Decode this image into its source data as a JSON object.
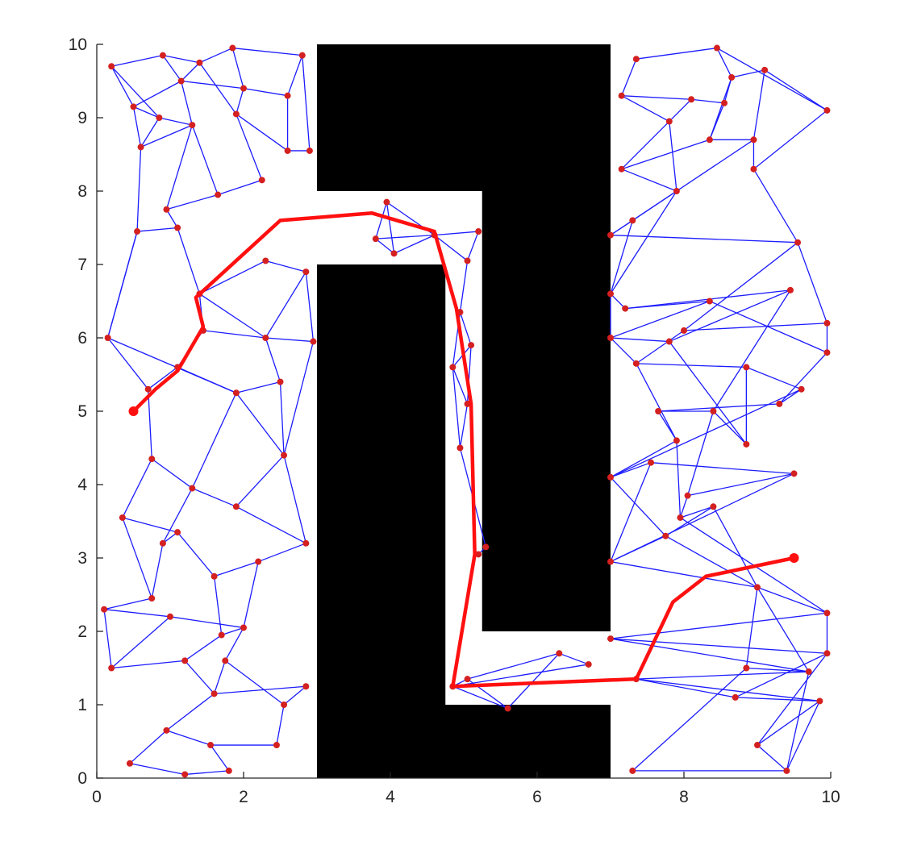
{
  "chart_data": {
    "type": "scatter",
    "title": "",
    "xlabel": "",
    "ylabel": "",
    "xlim": [
      0,
      10
    ],
    "ylim": [
      0,
      10
    ],
    "x_ticks": [
      "0",
      "2",
      "4",
      "6",
      "8",
      "10"
    ],
    "y_ticks": [
      "0",
      "1",
      "2",
      "3",
      "4",
      "5",
      "6",
      "7",
      "8",
      "9",
      "10"
    ],
    "grid": false,
    "legend": "none",
    "colors": {
      "obstacle": "#000000",
      "edge": "#1c1cff",
      "node": "#d42020",
      "path": "#ff1010"
    },
    "obstacles": [
      {
        "name": "upper-block",
        "polygon": [
          [
            3.0,
            10.0
          ],
          [
            7.0,
            10.0
          ],
          [
            7.0,
            2.0
          ],
          [
            5.25,
            2.0
          ],
          [
            5.25,
            8.0
          ],
          [
            3.0,
            8.0
          ]
        ]
      },
      {
        "name": "lower-block",
        "polygon": [
          [
            3.0,
            7.0
          ],
          [
            4.75,
            7.0
          ],
          [
            4.75,
            1.0
          ],
          [
            7.0,
            1.0
          ],
          [
            7.0,
            0.0
          ],
          [
            3.0,
            0.0
          ]
        ]
      }
    ],
    "nodes": [
      [
        0.2,
        9.7
      ],
      [
        0.9,
        9.85
      ],
      [
        1.4,
        9.75
      ],
      [
        1.85,
        9.95
      ],
      [
        2.8,
        9.85
      ],
      [
        0.5,
        9.15
      ],
      [
        1.15,
        9.5
      ],
      [
        2.0,
        9.4
      ],
      [
        2.6,
        9.3
      ],
      [
        0.85,
        9.0
      ],
      [
        1.9,
        9.05
      ],
      [
        0.6,
        8.6
      ],
      [
        1.3,
        8.9
      ],
      [
        2.6,
        8.55
      ],
      [
        2.9,
        8.55
      ],
      [
        2.25,
        8.15
      ],
      [
        1.65,
        7.95
      ],
      [
        0.95,
        7.75
      ],
      [
        1.1,
        7.5
      ],
      [
        0.55,
        7.45
      ],
      [
        1.4,
        6.6
      ],
      [
        1.45,
        6.1
      ],
      [
        2.85,
        6.9
      ],
      [
        2.3,
        7.05
      ],
      [
        0.15,
        6.0
      ],
      [
        2.95,
        5.95
      ],
      [
        2.3,
        6.0
      ],
      [
        1.1,
        5.6
      ],
      [
        0.7,
        5.3
      ],
      [
        2.5,
        5.4
      ],
      [
        1.9,
        5.25
      ],
      [
        2.55,
        4.4
      ],
      [
        0.75,
        4.35
      ],
      [
        1.3,
        3.95
      ],
      [
        1.9,
        3.7
      ],
      [
        0.35,
        3.55
      ],
      [
        1.1,
        3.35
      ],
      [
        0.9,
        3.2
      ],
      [
        2.85,
        3.2
      ],
      [
        2.2,
        2.95
      ],
      [
        1.6,
        2.75
      ],
      [
        0.75,
        2.45
      ],
      [
        0.1,
        2.3
      ],
      [
        1.0,
        2.2
      ],
      [
        2.0,
        2.05
      ],
      [
        1.7,
        1.95
      ],
      [
        0.2,
        1.5
      ],
      [
        1.2,
        1.6
      ],
      [
        1.75,
        1.6
      ],
      [
        1.6,
        1.15
      ],
      [
        2.85,
        1.25
      ],
      [
        0.95,
        0.65
      ],
      [
        2.55,
        1.0
      ],
      [
        2.45,
        0.45
      ],
      [
        1.55,
        0.45
      ],
      [
        0.45,
        0.2
      ],
      [
        1.2,
        0.05
      ],
      [
        1.8,
        0.1
      ],
      [
        3.95,
        7.85
      ],
      [
        3.8,
        7.35
      ],
      [
        4.05,
        7.15
      ],
      [
        4.6,
        7.4
      ],
      [
        5.2,
        7.45
      ],
      [
        5.05,
        7.05
      ],
      [
        4.95,
        6.35
      ],
      [
        5.1,
        5.9
      ],
      [
        4.85,
        5.6
      ],
      [
        5.05,
        5.1
      ],
      [
        4.95,
        4.5
      ],
      [
        5.3,
        3.15
      ],
      [
        5.2,
        3.05
      ],
      [
        4.85,
        1.25
      ],
      [
        5.05,
        1.35
      ],
      [
        5.6,
        0.95
      ],
      [
        6.3,
        1.7
      ],
      [
        6.7,
        1.55
      ],
      [
        7.15,
        9.3
      ],
      [
        7.35,
        9.8
      ],
      [
        8.45,
        9.95
      ],
      [
        8.65,
        9.55
      ],
      [
        9.1,
        9.65
      ],
      [
        9.95,
        9.1
      ],
      [
        8.1,
        9.25
      ],
      [
        8.55,
        9.2
      ],
      [
        7.8,
        8.95
      ],
      [
        7.15,
        8.3
      ],
      [
        8.35,
        8.7
      ],
      [
        8.95,
        8.7
      ],
      [
        8.95,
        8.3
      ],
      [
        7.9,
        8.0
      ],
      [
        7.3,
        7.6
      ],
      [
        7.0,
        7.4
      ],
      [
        9.55,
        7.3
      ],
      [
        7.0,
        6.6
      ],
      [
        7.2,
        6.4
      ],
      [
        9.45,
        6.65
      ],
      [
        8.35,
        6.5
      ],
      [
        7.0,
        6.0
      ],
      [
        7.8,
        5.95
      ],
      [
        8.0,
        6.1
      ],
      [
        9.95,
        6.2
      ],
      [
        9.95,
        5.8
      ],
      [
        7.35,
        5.65
      ],
      [
        8.85,
        5.6
      ],
      [
        9.6,
        5.3
      ],
      [
        9.3,
        5.1
      ],
      [
        7.65,
        5.0
      ],
      [
        8.4,
        5.0
      ],
      [
        8.85,
        4.55
      ],
      [
        7.9,
        4.6
      ],
      [
        7.0,
        4.1
      ],
      [
        7.55,
        4.3
      ],
      [
        9.5,
        4.15
      ],
      [
        8.05,
        3.85
      ],
      [
        7.95,
        3.55
      ],
      [
        8.4,
        3.7
      ],
      [
        7.75,
        3.3
      ],
      [
        7.0,
        2.95
      ],
      [
        9.0,
        2.6
      ],
      [
        9.95,
        2.25
      ],
      [
        7.0,
        1.9
      ],
      [
        8.85,
        1.5
      ],
      [
        9.7,
        1.45
      ],
      [
        9.95,
        1.7
      ],
      [
        7.35,
        1.35
      ],
      [
        8.7,
        1.1
      ],
      [
        9.85,
        1.05
      ],
      [
        9.0,
        0.45
      ],
      [
        9.4,
        0.1
      ],
      [
        7.3,
        0.1
      ]
    ],
    "edges": [
      [
        0,
        1
      ],
      [
        1,
        2
      ],
      [
        2,
        3
      ],
      [
        3,
        4
      ],
      [
        0,
        5
      ],
      [
        1,
        6
      ],
      [
        2,
        6
      ],
      [
        3,
        7
      ],
      [
        4,
        8
      ],
      [
        5,
        6
      ],
      [
        6,
        7
      ],
      [
        7,
        8
      ],
      [
        5,
        9
      ],
      [
        9,
        12
      ],
      [
        6,
        12
      ],
      [
        7,
        10
      ],
      [
        8,
        13
      ],
      [
        10,
        13
      ],
      [
        10,
        15
      ],
      [
        13,
        14
      ],
      [
        11,
        9
      ],
      [
        11,
        12
      ],
      [
        12,
        16
      ],
      [
        15,
        16
      ],
      [
        16,
        17
      ],
      [
        17,
        18
      ],
      [
        18,
        19
      ],
      [
        19,
        11
      ],
      [
        17,
        12
      ],
      [
        18,
        20
      ],
      [
        20,
        21
      ],
      [
        19,
        24
      ],
      [
        21,
        27
      ],
      [
        27,
        28
      ],
      [
        28,
        24
      ],
      [
        20,
        26
      ],
      [
        26,
        25
      ],
      [
        22,
        23
      ],
      [
        23,
        20
      ],
      [
        22,
        25
      ],
      [
        26,
        29
      ],
      [
        29,
        30
      ],
      [
        30,
        27
      ],
      [
        29,
        31
      ],
      [
        30,
        31
      ],
      [
        28,
        32
      ],
      [
        32,
        33
      ],
      [
        33,
        34
      ],
      [
        34,
        31
      ],
      [
        32,
        35
      ],
      [
        35,
        36
      ],
      [
        36,
        37
      ],
      [
        37,
        33
      ],
      [
        34,
        38
      ],
      [
        38,
        39
      ],
      [
        39,
        40
      ],
      [
        40,
        36
      ],
      [
        41,
        37
      ],
      [
        41,
        42
      ],
      [
        42,
        43
      ],
      [
        43,
        44
      ],
      [
        44,
        45
      ],
      [
        45,
        47
      ],
      [
        47,
        46
      ],
      [
        46,
        42
      ],
      [
        47,
        49
      ],
      [
        48,
        49
      ],
      [
        49,
        50
      ],
      [
        50,
        52
      ],
      [
        52,
        53
      ],
      [
        53,
        54
      ],
      [
        54,
        51
      ],
      [
        51,
        55
      ],
      [
        55,
        56
      ],
      [
        56,
        57
      ],
      [
        57,
        54
      ],
      [
        51,
        49
      ],
      [
        44,
        39
      ],
      [
        31,
        38
      ],
      [
        25,
        31
      ],
      [
        21,
        26
      ],
      [
        24,
        30
      ],
      [
        35,
        41
      ],
      [
        43,
        46
      ],
      [
        48,
        44
      ],
      [
        52,
        48
      ],
      [
        45,
        40
      ],
      [
        0,
        9
      ],
      [
        4,
        14
      ],
      [
        2,
        10
      ],
      [
        24,
        19
      ],
      [
        11,
        5
      ],
      [
        22,
        26
      ],
      [
        30,
        33
      ],
      [
        58,
        59
      ],
      [
        59,
        60
      ],
      [
        60,
        61
      ],
      [
        61,
        62
      ],
      [
        62,
        63
      ],
      [
        58,
        61
      ],
      [
        58,
        60
      ],
      [
        59,
        61
      ],
      [
        61,
        63
      ],
      [
        63,
        64
      ],
      [
        64,
        65
      ],
      [
        65,
        66
      ],
      [
        66,
        67
      ],
      [
        67,
        68
      ],
      [
        68,
        69
      ],
      [
        69,
        70
      ],
      [
        68,
        66
      ],
      [
        64,
        66
      ],
      [
        65,
        67
      ],
      [
        71,
        72
      ],
      [
        72,
        73
      ],
      [
        73,
        74
      ],
      [
        74,
        75
      ],
      [
        71,
        73
      ],
      [
        72,
        74
      ],
      [
        71,
        75
      ],
      [
        77,
        78
      ],
      [
        78,
        79
      ],
      [
        79,
        80
      ],
      [
        80,
        81
      ],
      [
        76,
        77
      ],
      [
        76,
        82
      ],
      [
        82,
        83
      ],
      [
        83,
        79
      ],
      [
        82,
        84
      ],
      [
        84,
        85
      ],
      [
        85,
        86
      ],
      [
        86,
        87
      ],
      [
        87,
        88
      ],
      [
        85,
        89
      ],
      [
        89,
        90
      ],
      [
        90,
        91
      ],
      [
        91,
        92
      ],
      [
        89,
        93
      ],
      [
        93,
        94
      ],
      [
        94,
        96
      ],
      [
        96,
        97
      ],
      [
        97,
        98
      ],
      [
        98,
        95
      ],
      [
        95,
        94
      ],
      [
        92,
        99
      ],
      [
        99,
        100
      ],
      [
        100,
        101
      ],
      [
        101,
        96
      ],
      [
        97,
        102
      ],
      [
        102,
        103
      ],
      [
        103,
        104
      ],
      [
        104,
        105
      ],
      [
        105,
        106
      ],
      [
        106,
        107
      ],
      [
        107,
        108
      ],
      [
        108,
        103
      ],
      [
        104,
        110
      ],
      [
        110,
        109
      ],
      [
        109,
        106
      ],
      [
        110,
        111
      ],
      [
        111,
        112
      ],
      [
        112,
        113
      ],
      [
        113,
        114
      ],
      [
        114,
        115
      ],
      [
        115,
        116
      ],
      [
        116,
        117
      ],
      [
        117,
        111
      ],
      [
        118,
        119
      ],
      [
        119,
        120
      ],
      [
        118,
        121
      ],
      [
        121,
        122
      ],
      [
        122,
        124
      ],
      [
        124,
        125
      ],
      [
        125,
        123
      ],
      [
        123,
        120
      ],
      [
        120,
        122
      ],
      [
        126,
        127
      ],
      [
        127,
        128
      ],
      [
        128,
        129
      ],
      [
        125,
        126
      ],
      [
        124,
        126
      ],
      [
        115,
        118
      ],
      [
        116,
        118
      ],
      [
        81,
        88
      ],
      [
        87,
        91
      ],
      [
        83,
        86
      ],
      [
        80,
        87
      ],
      [
        90,
        93
      ],
      [
        92,
        100
      ],
      [
        99,
        102
      ],
      [
        101,
        105
      ],
      [
        107,
        113
      ],
      [
        112,
        117
      ],
      [
        114,
        119
      ],
      [
        119,
        123
      ],
      [
        76,
        84
      ],
      [
        78,
        81
      ],
      [
        79,
        86
      ],
      [
        84,
        89
      ],
      [
        88,
        92
      ],
      [
        93,
        97
      ],
      [
        95,
        107
      ],
      [
        98,
        108
      ],
      [
        102,
        109
      ],
      [
        109,
        114
      ],
      [
        110,
        116
      ],
      [
        117,
        118
      ],
      [
        118,
        122
      ],
      [
        121,
        129
      ],
      [
        122,
        128
      ],
      [
        123,
        127
      ],
      [
        126,
        128
      ]
    ],
    "path": [
      [
        0.5,
        5.0
      ],
      [
        0.8,
        5.3
      ],
      [
        1.1,
        5.55
      ],
      [
        1.45,
        6.15
      ],
      [
        1.35,
        6.55
      ],
      [
        2.5,
        7.6
      ],
      [
        3.75,
        7.7
      ],
      [
        4.6,
        7.45
      ],
      [
        4.9,
        6.4
      ],
      [
        5.1,
        5.1
      ],
      [
        5.15,
        3.05
      ],
      [
        4.85,
        1.25
      ],
      [
        7.35,
        1.35
      ],
      [
        7.85,
        2.4
      ],
      [
        8.3,
        2.75
      ],
      [
        9.5,
        3.0
      ]
    ]
  }
}
